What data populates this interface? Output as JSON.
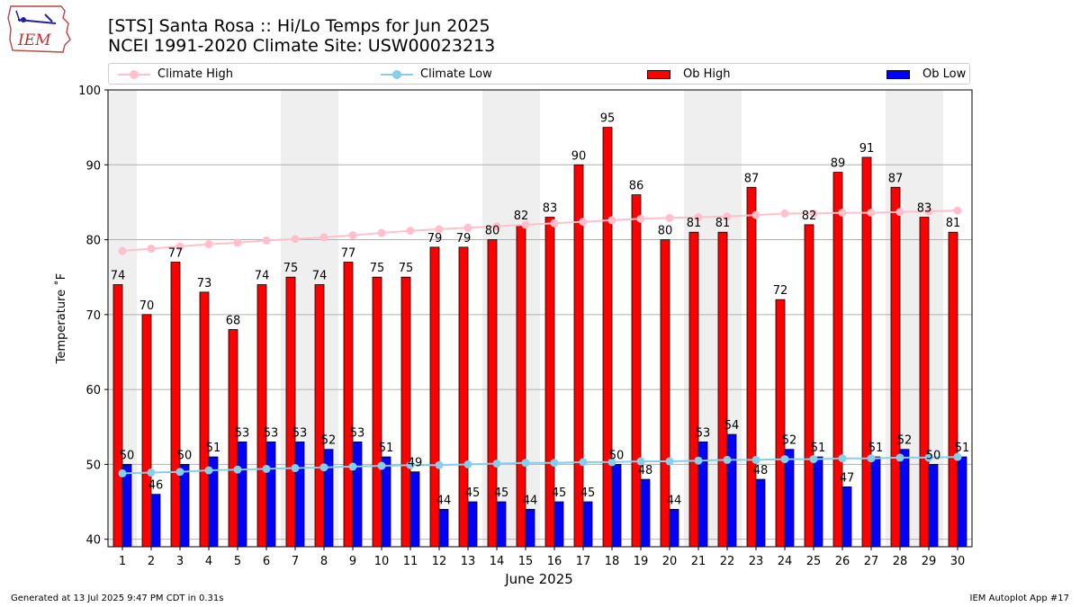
{
  "header": {
    "title_line1": "[STS] Santa Rosa :: Hi/Lo Temps for Jun 2025",
    "title_line2": "NCEI 1991-2020 Climate Site: USW00023213",
    "logo_text": "IEM"
  },
  "footer": {
    "generated": "Generated at 13 Jul 2025 9:47 PM CDT in 0.31s",
    "app": "IEM Autoplot App #17"
  },
  "colors": {
    "ob_high": "#ff0000",
    "ob_low": "#0000ff",
    "climate_high": "#ffc0cb",
    "climate_low": "#87ceeb",
    "weekend_band": "#efefef",
    "grid": "#b0b0b0"
  },
  "legend": [
    {
      "name": "Climate High",
      "kind": "line"
    },
    {
      "name": "Climate Low",
      "kind": "line"
    },
    {
      "name": "Ob High",
      "kind": "bar"
    },
    {
      "name": "Ob Low",
      "kind": "bar"
    }
  ],
  "chart_data": {
    "type": "bar",
    "xlabel": "June 2025",
    "ylabel": "Temperature ˚F",
    "ylim": [
      39,
      100
    ],
    "yticks": [
      40,
      50,
      60,
      70,
      80,
      90,
      100
    ],
    "grid": "horizontal",
    "legend_position": "top",
    "categories": [
      "1",
      "2",
      "3",
      "4",
      "5",
      "6",
      "7",
      "8",
      "9",
      "10",
      "11",
      "12",
      "13",
      "14",
      "15",
      "16",
      "17",
      "18",
      "19",
      "20",
      "21",
      "22",
      "23",
      "24",
      "25",
      "26",
      "27",
      "28",
      "29",
      "30"
    ],
    "shaded_days": [
      1,
      7,
      8,
      14,
      15,
      21,
      22,
      28,
      29
    ],
    "series": [
      {
        "name": "Ob High",
        "kind": "bar",
        "values": [
          74,
          70,
          77,
          73,
          68,
          74,
          75,
          74,
          77,
          75,
          75,
          79,
          79,
          80,
          82,
          83,
          90,
          95,
          86,
          80,
          81,
          81,
          87,
          72,
          82,
          89,
          91,
          87,
          83,
          81
        ]
      },
      {
        "name": "Ob Low",
        "kind": "bar",
        "values": [
          50,
          46,
          50,
          51,
          53,
          53,
          53,
          52,
          53,
          51,
          49,
          44,
          45,
          45,
          44,
          45,
          45,
          50,
          48,
          44,
          53,
          54,
          48,
          52,
          51,
          47,
          51,
          52,
          50,
          51
        ]
      },
      {
        "name": "Climate High",
        "kind": "line",
        "values": [
          78.5,
          78.8,
          79.1,
          79.4,
          79.6,
          79.9,
          80.1,
          80.3,
          80.6,
          80.9,
          81.2,
          81.4,
          81.6,
          81.8,
          82.0,
          82.2,
          82.4,
          82.6,
          82.8,
          82.9,
          83.0,
          83.1,
          83.3,
          83.5,
          83.5,
          83.6,
          83.6,
          83.7,
          83.8,
          83.9
        ]
      },
      {
        "name": "Climate Low",
        "kind": "line",
        "values": [
          48.8,
          48.9,
          49.0,
          49.2,
          49.3,
          49.4,
          49.5,
          49.6,
          49.7,
          49.8,
          49.9,
          49.9,
          50.0,
          50.1,
          50.2,
          50.2,
          50.3,
          50.3,
          50.4,
          50.4,
          50.5,
          50.6,
          50.6,
          50.7,
          50.7,
          50.8,
          50.8,
          50.9,
          50.9,
          51.0
        ]
      }
    ]
  }
}
